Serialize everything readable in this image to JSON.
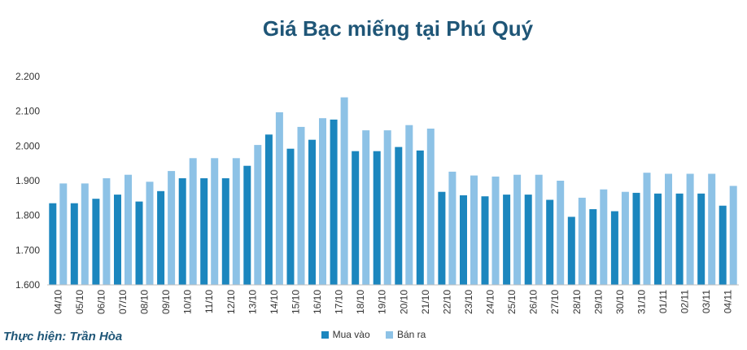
{
  "chart_data": {
    "type": "bar",
    "title": "Giá Bạc miếng tại Phú Quý",
    "credit": "Thực hiện: Trần Hòa",
    "ylim": [
      1600,
      2200
    ],
    "yticks": [
      1600,
      1700,
      1800,
      1900,
      2000,
      2100,
      2200
    ],
    "ytick_labels": [
      "1.600",
      "1.700",
      "1.800",
      "1.900",
      "2.000",
      "2.100",
      "2.200"
    ],
    "categories": [
      "04/10",
      "05/10",
      "06/10",
      "07/10",
      "08/10",
      "09/10",
      "10/10",
      "11/10",
      "12/10",
      "13/10",
      "14/10",
      "15/10",
      "16/10",
      "17/10",
      "18/10",
      "19/10",
      "20/10",
      "21/10",
      "22/10",
      "23/10",
      "24/10",
      "25/10",
      "26/10",
      "27/10",
      "28/10",
      "29/10",
      "30/10",
      "31/10",
      "01/11",
      "02/11",
      "03/11",
      "04/11"
    ],
    "series": [
      {
        "name": "Mua vào",
        "color": "#1b86be",
        "values": [
          1835,
          1835,
          1848,
          1860,
          1840,
          1870,
          1907,
          1907,
          1907,
          1943,
          2033,
          1992,
          2018,
          2076,
          1985,
          1985,
          1997,
          1987,
          1868,
          1858,
          1855,
          1860,
          1860,
          1845,
          1796,
          1818,
          1812,
          1865,
          1863,
          1863,
          1863,
          1828
        ]
      },
      {
        "name": "Bán ra",
        "color": "#8dc2e6",
        "values": [
          1892,
          1892,
          1907,
          1917,
          1897,
          1928,
          1965,
          1965,
          1965,
          2003,
          2097,
          2055,
          2080,
          2140,
          2045,
          2045,
          2060,
          2050,
          1926,
          1915,
          1912,
          1917,
          1917,
          1900,
          1851,
          1875,
          1868,
          1923,
          1920,
          1920,
          1920,
          1885
        ]
      }
    ],
    "legend_position": "bottom",
    "grid": false
  }
}
